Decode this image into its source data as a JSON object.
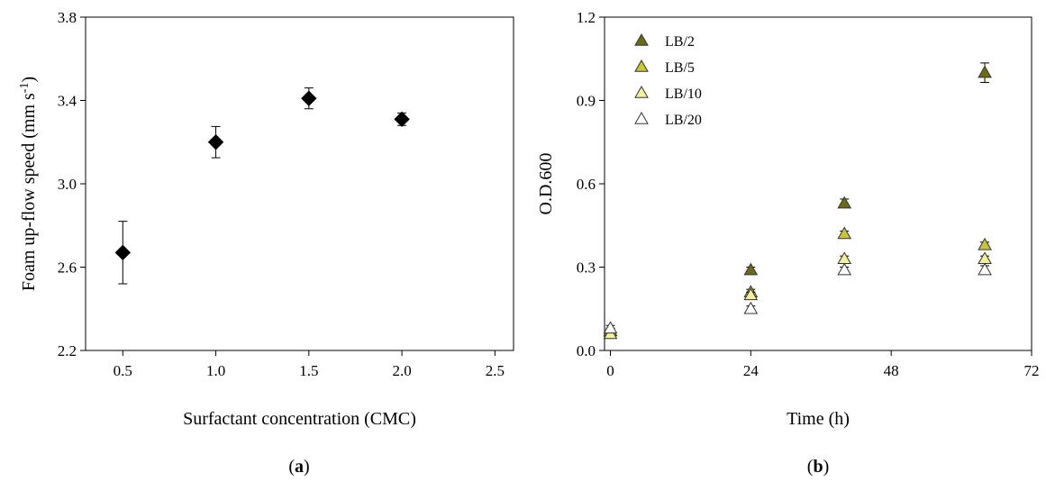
{
  "chart_data": [
    {
      "type": "scatter",
      "panel_label": "a",
      "xlabel": "Surfactant concentration (CMC)",
      "ylabel": "Foam up-flow speed (mm s-1)",
      "xlim": [
        0.3,
        2.6
      ],
      "ylim": [
        2.2,
        3.8
      ],
      "xticks": [
        0.5,
        1.0,
        1.5,
        2.0,
        2.5
      ],
      "xtick_labels": [
        "0.5",
        "1.0",
        "1.5",
        "2.0",
        "2.5"
      ],
      "yticks": [
        2.2,
        2.6,
        3.0,
        3.4,
        3.8
      ],
      "ytick_labels": [
        "2.2",
        "2.6",
        "3.0",
        "3.4",
        "3.8"
      ],
      "grid": false,
      "marker": "diamond",
      "marker_color": "#000000",
      "series": [
        {
          "x": [
            0.5,
            1.0,
            1.5,
            2.0
          ],
          "y": [
            2.67,
            3.2,
            3.41,
            3.31
          ],
          "error": [
            0.15,
            0.075,
            0.05,
            0.03
          ]
        }
      ]
    },
    {
      "type": "scatter",
      "panel_label": "b",
      "xlabel": "Time (h)",
      "ylabel": "O.D.600",
      "xlim": [
        -1,
        72
      ],
      "ylim": [
        0.0,
        1.2
      ],
      "xticks": [
        0,
        24,
        48,
        72
      ],
      "xtick_labels": [
        "0",
        "24",
        "48",
        "72"
      ],
      "yticks": [
        0.0,
        0.3,
        0.6,
        0.9,
        1.2
      ],
      "ytick_labels": [
        "0.0",
        "0.3",
        "0.6",
        "0.9",
        "1.2"
      ],
      "grid": false,
      "marker": "triangle",
      "legend_position": "top-left",
      "series": [
        {
          "name": "LB/2",
          "color": "#6e6a1c",
          "x": [
            0,
            24,
            40,
            64
          ],
          "y": [
            0.07,
            0.29,
            0.53,
            1.0
          ],
          "error": [
            0.01,
            0.01,
            0.015,
            0.035
          ]
        },
        {
          "name": "LB/5",
          "color": "#c9c43a",
          "x": [
            0,
            24,
            40,
            64
          ],
          "y": [
            0.07,
            0.21,
            0.42,
            0.38
          ],
          "error": [
            0.01,
            0.01,
            0.01,
            0.01
          ]
        },
        {
          "name": "LB/10",
          "color": "#f3f09c",
          "x": [
            0,
            24,
            40,
            64
          ],
          "y": [
            0.06,
            0.2,
            0.33,
            0.33
          ],
          "error": [
            0.01,
            0.01,
            0.01,
            0.01
          ]
        },
        {
          "name": "LB/20",
          "color": "#ffffff",
          "x": [
            0,
            24,
            40,
            64
          ],
          "y": [
            0.08,
            0.15,
            0.29,
            0.29
          ],
          "error": [
            0.01,
            0.01,
            0.01,
            0.015
          ]
        }
      ]
    }
  ],
  "captions": [
    "a",
    "b"
  ]
}
